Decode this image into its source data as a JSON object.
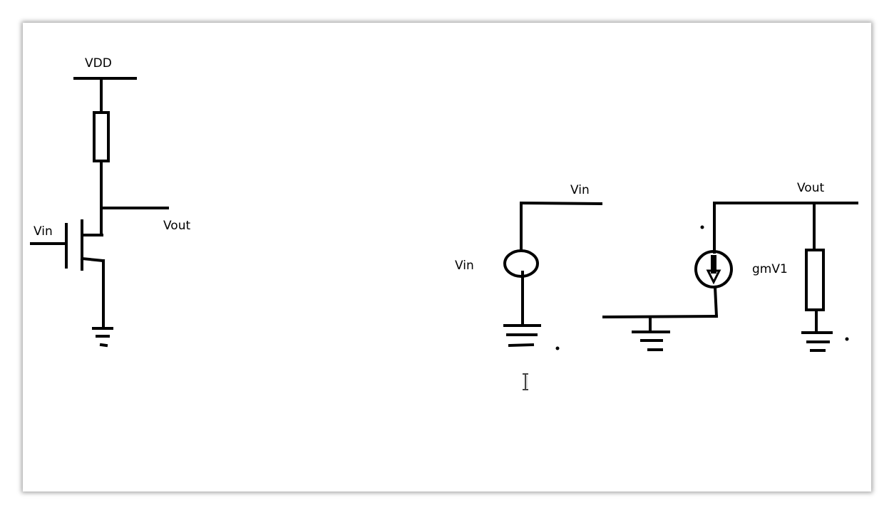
{
  "labels": {
    "vdd": "VDD",
    "vin_mosfet": "Vin",
    "vout_mosfet": "Vout",
    "vin_node": "Vin",
    "vin_source": "Vin",
    "vout_model": "Vout",
    "gm_source": "gmV1"
  },
  "colors": {
    "ink": "#000000",
    "background": "#ffffff"
  },
  "icons": {
    "cursor": "text-cursor-icon"
  }
}
